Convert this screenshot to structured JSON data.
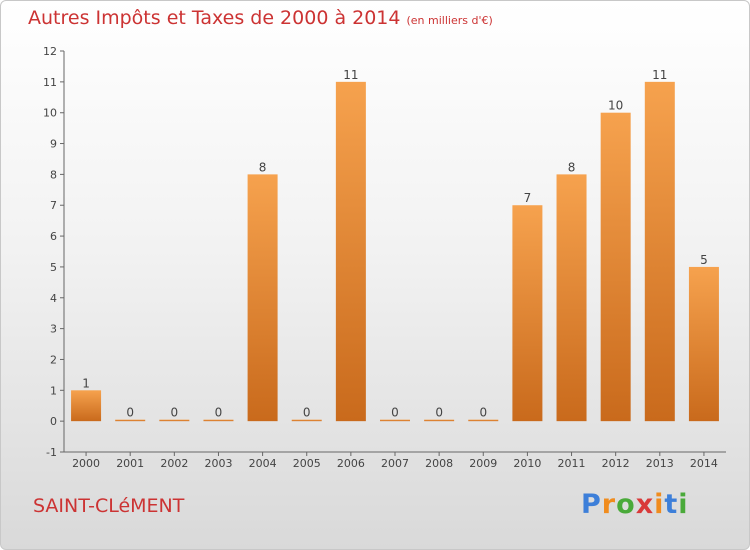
{
  "title": "Autres Impôts et Taxes de 2000 à 2014",
  "subtitle": "(en milliers d'€)",
  "commune": "SAINT-CLéMENT",
  "logo": {
    "text": "Proxiti",
    "letters": [
      {
        "ch": "P",
        "color": "#3d7fd9"
      },
      {
        "ch": "r",
        "color": "#f08c1e"
      },
      {
        "ch": "o",
        "color": "#4aaa3a"
      },
      {
        "ch": "x",
        "color": "#d93a3a"
      },
      {
        "ch": "i",
        "color": "#f08c1e"
      },
      {
        "ch": "t",
        "color": "#3d7fd9"
      },
      {
        "ch": "i",
        "color": "#4aaa3a"
      }
    ]
  },
  "colors": {
    "bar_light": "#f6a24e",
    "bar_dark": "#c96a1c",
    "title": "#cc3333",
    "axis": "#666666"
  },
  "chart_data": {
    "type": "bar",
    "title": "Autres Impôts et Taxes de 2000 à 2014",
    "subtitle": "(en milliers d'€)",
    "categories": [
      "2000",
      "2001",
      "2002",
      "2003",
      "2004",
      "2005",
      "2006",
      "2007",
      "2008",
      "2009",
      "2010",
      "2011",
      "2012",
      "2013",
      "2014"
    ],
    "values": [
      1,
      0,
      0,
      0,
      8,
      0,
      11,
      0,
      0,
      0,
      7,
      8,
      10,
      11,
      5
    ],
    "data_labels": [
      "1",
      "0",
      "0",
      "0",
      "8",
      "0",
      "11",
      "0",
      "0",
      "0",
      "7",
      "8",
      "10",
      "11",
      "5"
    ],
    "yticks": [
      -1,
      0,
      1,
      2,
      3,
      4,
      5,
      6,
      7,
      8,
      9,
      10,
      11,
      12
    ],
    "ylim": [
      -1,
      12
    ],
    "xlabel": "",
    "ylabel": "",
    "grid": false,
    "legend": "none"
  }
}
